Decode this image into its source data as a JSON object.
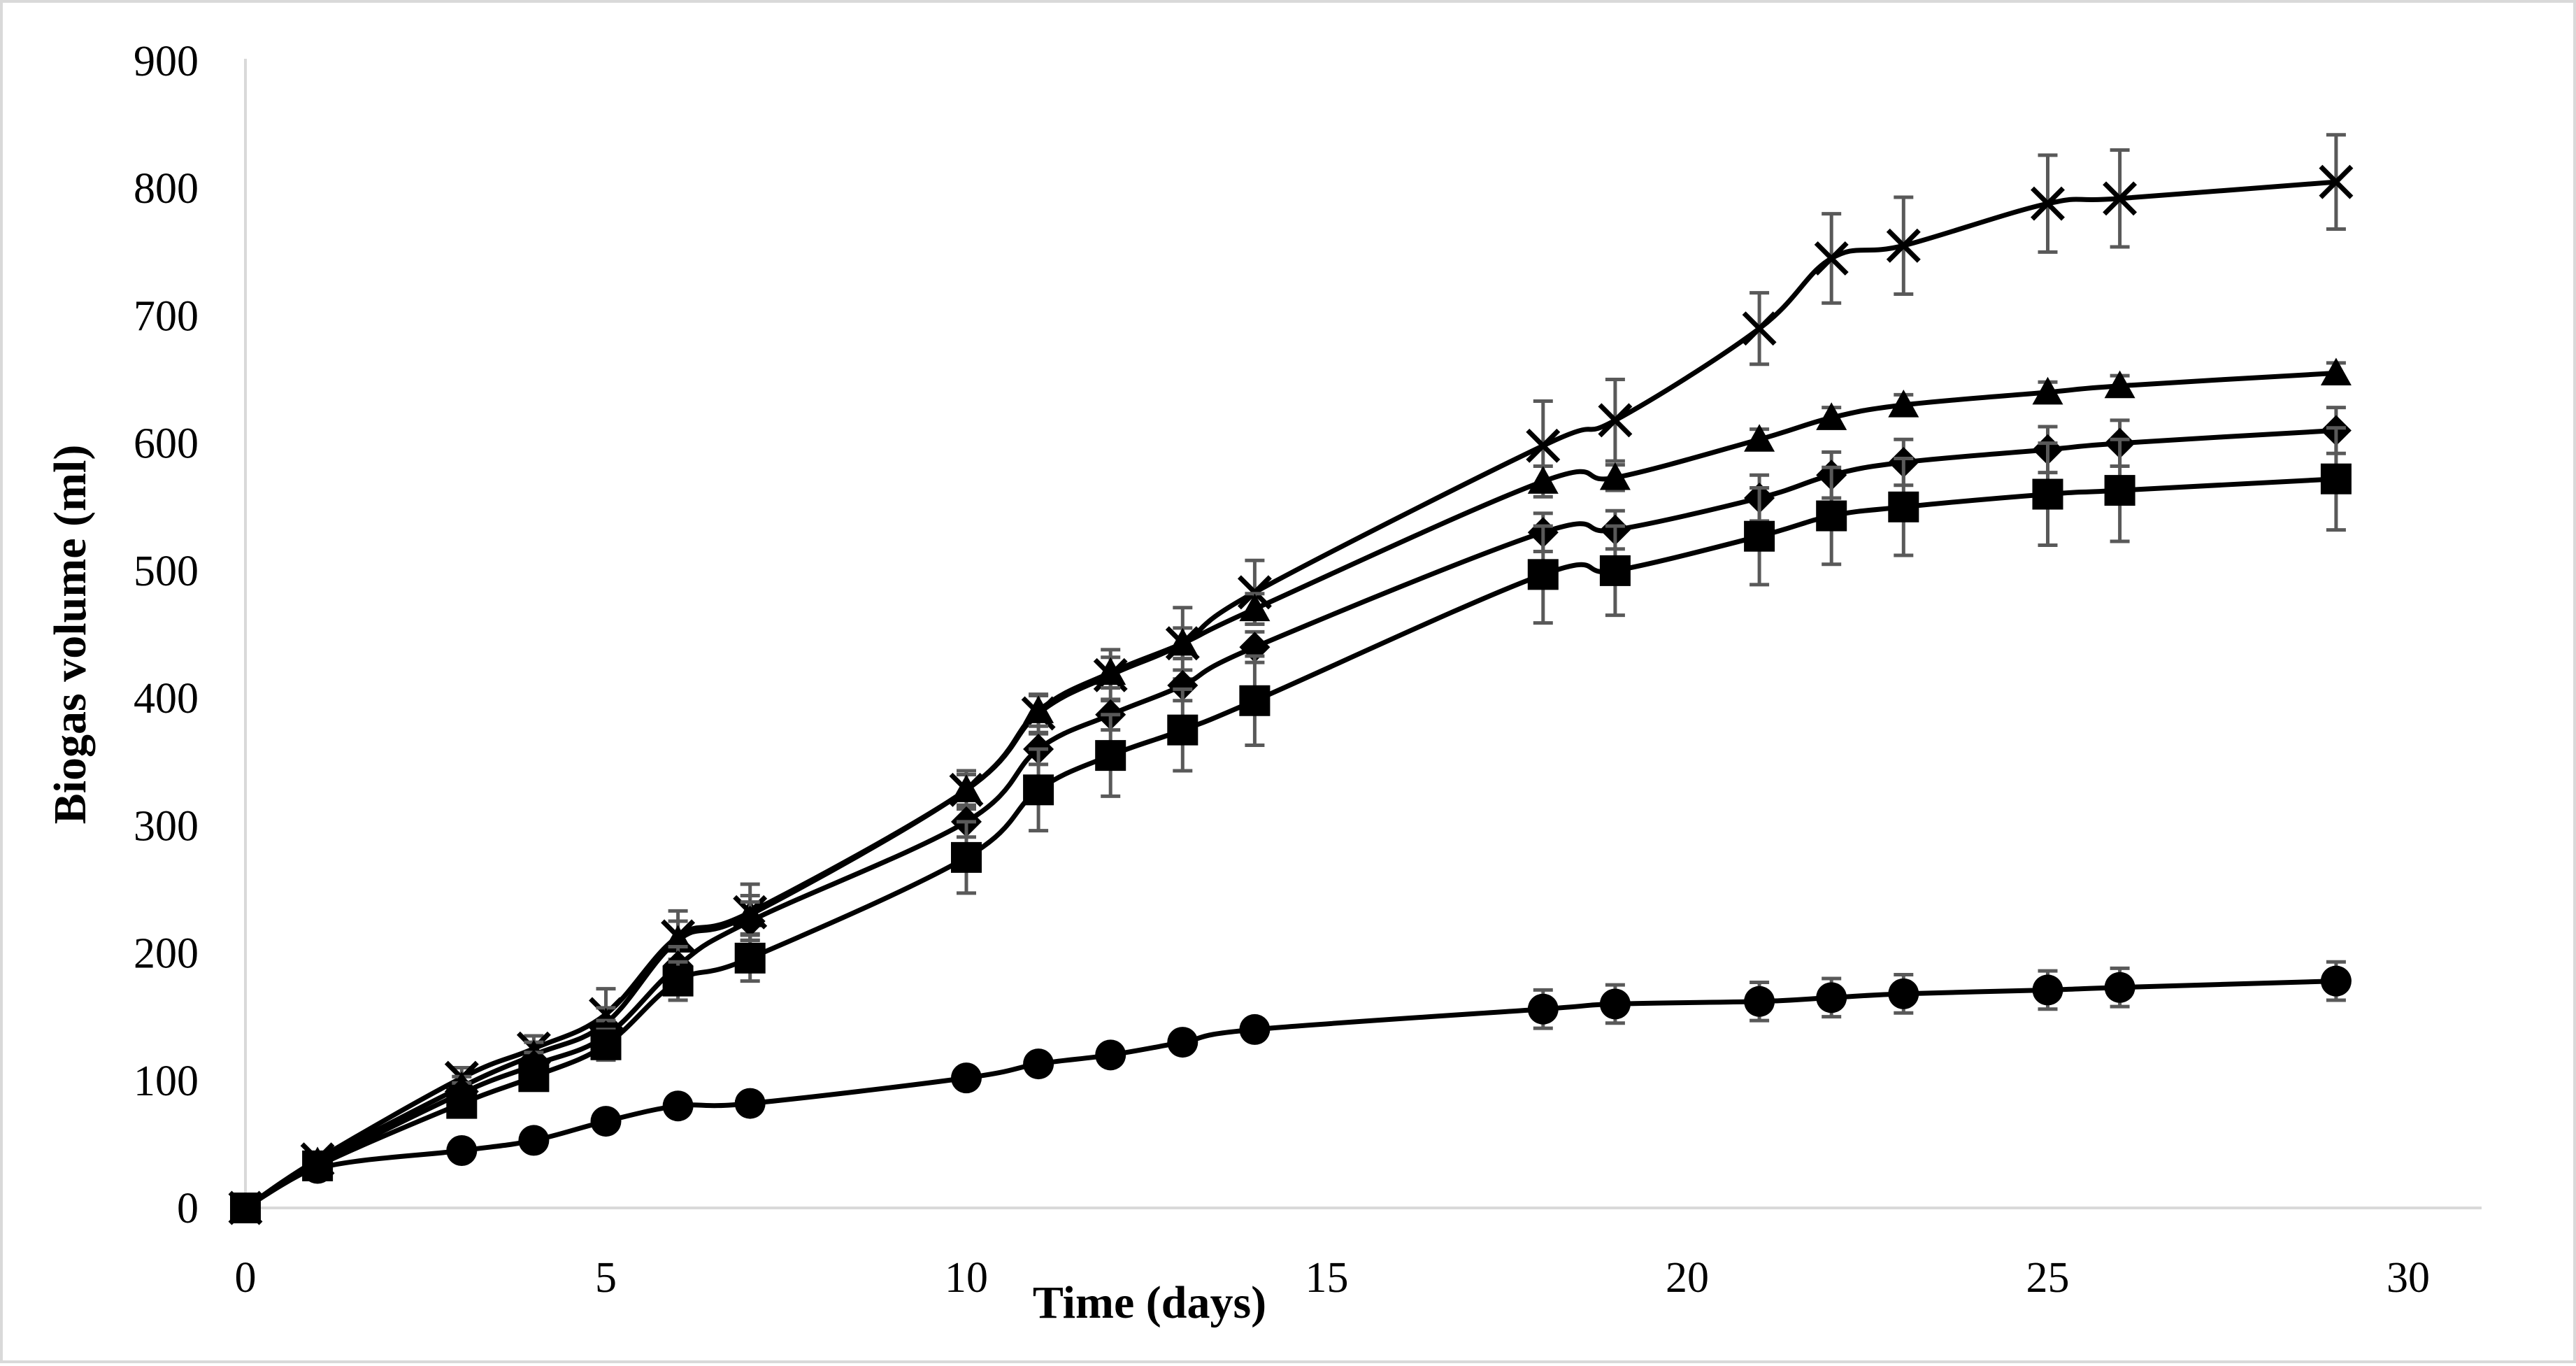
{
  "chart_data": {
    "type": "line",
    "title": "",
    "xlabel": "Time (days)",
    "ylabel": "Biogas volume (ml)",
    "xlim": [
      0,
      30
    ],
    "ylim": [
      0,
      900
    ],
    "xticks": [
      "0",
      "5",
      "10",
      "15",
      "20",
      "25",
      "30"
    ],
    "yticks": [
      "0",
      "100",
      "200",
      "300",
      "400",
      "500",
      "600",
      "700",
      "800",
      "900"
    ],
    "grid": false,
    "legend": "none",
    "series": [
      {
        "name": "cross",
        "marker": "x",
        "x": [
          0,
          1,
          3,
          4,
          5,
          6,
          7,
          10,
          11,
          12,
          13,
          14,
          18,
          19,
          21,
          22,
          23,
          25,
          26,
          29
        ],
        "y": [
          0,
          38,
          102,
          125,
          152,
          213,
          232,
          328,
          388,
          418,
          443,
          483,
          598,
          618,
          690,
          745,
          755,
          788,
          792,
          805
        ],
        "err": [
          0,
          4,
          8,
          10,
          20,
          20,
          22,
          15,
          15,
          20,
          28,
          25,
          35,
          32,
          28,
          35,
          38,
          38,
          38,
          37
        ]
      },
      {
        "name": "triangle",
        "marker": "triangle",
        "x": [
          0,
          1,
          3,
          4,
          5,
          6,
          7,
          10,
          11,
          12,
          13,
          14,
          18,
          19,
          21,
          22,
          23,
          25,
          26,
          29
        ],
        "y": [
          0,
          36,
          95,
          120,
          145,
          210,
          230,
          328,
          390,
          420,
          443,
          470,
          570,
          573,
          603,
          620,
          630,
          640,
          645,
          655
        ],
        "err": [
          0,
          4,
          8,
          10,
          12,
          15,
          15,
          12,
          12,
          12,
          12,
          12,
          12,
          10,
          8,
          8,
          8,
          8,
          8,
          8
        ]
      },
      {
        "name": "diamond",
        "marker": "diamond",
        "x": [
          0,
          1,
          3,
          4,
          5,
          6,
          7,
          10,
          11,
          12,
          13,
          14,
          18,
          19,
          21,
          22,
          23,
          25,
          26,
          29
        ],
        "y": [
          0,
          34,
          90,
          112,
          135,
          190,
          225,
          303,
          360,
          387,
          410,
          440,
          530,
          532,
          557,
          575,
          585,
          595,
          600,
          610
        ],
        "err": [
          0,
          4,
          8,
          10,
          12,
          15,
          15,
          12,
          12,
          12,
          12,
          12,
          15,
          15,
          18,
          18,
          18,
          18,
          18,
          18
        ]
      },
      {
        "name": "square",
        "marker": "square",
        "x": [
          0,
          1,
          3,
          4,
          5,
          6,
          7,
          10,
          11,
          12,
          13,
          14,
          18,
          19,
          21,
          22,
          23,
          25,
          26,
          29
        ],
        "y": [
          0,
          33,
          82,
          103,
          128,
          178,
          196,
          275,
          328,
          355,
          375,
          398,
          497,
          500,
          527,
          543,
          550,
          560,
          563,
          572
        ],
        "err": [
          0,
          4,
          8,
          10,
          12,
          15,
          18,
          28,
          32,
          32,
          32,
          35,
          38,
          35,
          38,
          38,
          38,
          40,
          40,
          40
        ]
      },
      {
        "name": "circle",
        "marker": "circle",
        "x": [
          0,
          1,
          3,
          4,
          5,
          6,
          7,
          10,
          11,
          12,
          13,
          14,
          18,
          19,
          21,
          22,
          23,
          25,
          26,
          29
        ],
        "y": [
          0,
          31,
          45,
          53,
          68,
          80,
          82,
          102,
          113,
          120,
          130,
          140,
          156,
          160,
          162,
          165,
          168,
          171,
          173,
          178
        ],
        "err": [
          0,
          3,
          4,
          4,
          5,
          5,
          5,
          6,
          6,
          8,
          8,
          8,
          15,
          15,
          15,
          15,
          15,
          15,
          15,
          15
        ]
      }
    ]
  }
}
